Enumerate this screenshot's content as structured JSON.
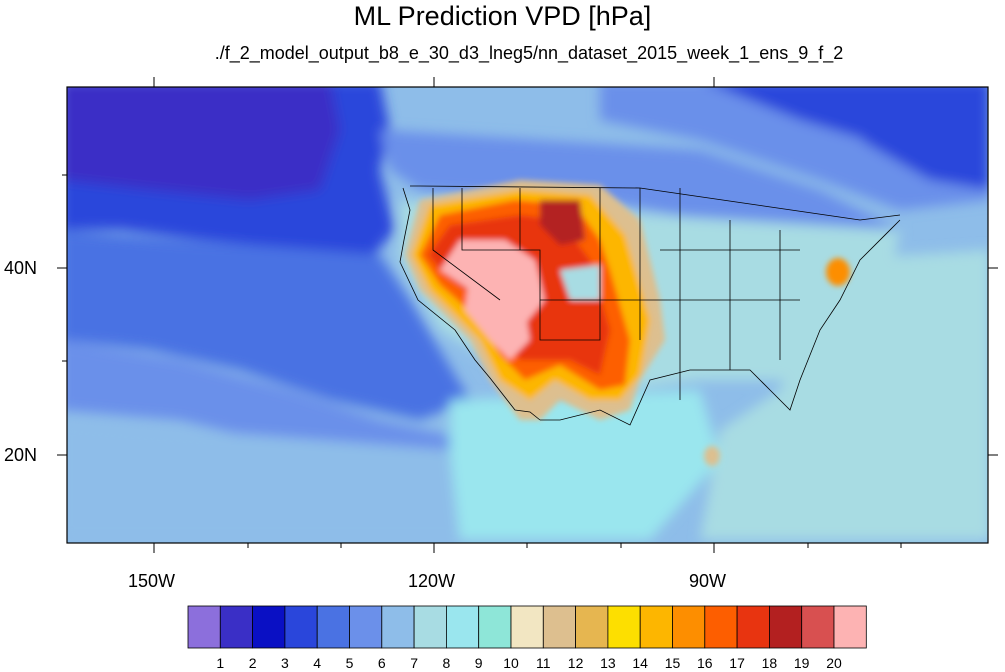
{
  "title": "ML Prediction VPD [hPa]",
  "subtitle": "./f_2_model_output_b8_e_30_d3_lneg5/nn_dataset_2015_week_1_ens_9_f_2",
  "map": {
    "projection": "cylindrical-equidistant",
    "lon_range": [
      -160,
      65
    ],
    "lat_range": [
      10,
      59
    ],
    "lon_ticks": [
      "150W",
      "120W",
      "90W"
    ],
    "lat_ticks": [
      "40N",
      "20N"
    ]
  },
  "colorbar": {
    "labels": [
      "1",
      "2",
      "3",
      "4",
      "5",
      "6",
      "7",
      "8",
      "9",
      "10",
      "11",
      "12",
      "13",
      "14",
      "15",
      "16",
      "17",
      "18",
      "19",
      "20"
    ],
    "colors": [
      "#8c6fdc",
      "#3a2fc6",
      "#0a10c4",
      "#2a46db",
      "#4a72e3",
      "#6b90ea",
      "#8ebde9",
      "#a8dce3",
      "#9ae6ee",
      "#8ee6d8",
      "#f2e6c2",
      "#ddbf8f",
      "#e6b650",
      "#fddf00",
      "#fdb600",
      "#fd8e00",
      "#fd5e00",
      "#e83410",
      "#b32020",
      "#d85050",
      "#fdb3b3"
    ]
  }
}
